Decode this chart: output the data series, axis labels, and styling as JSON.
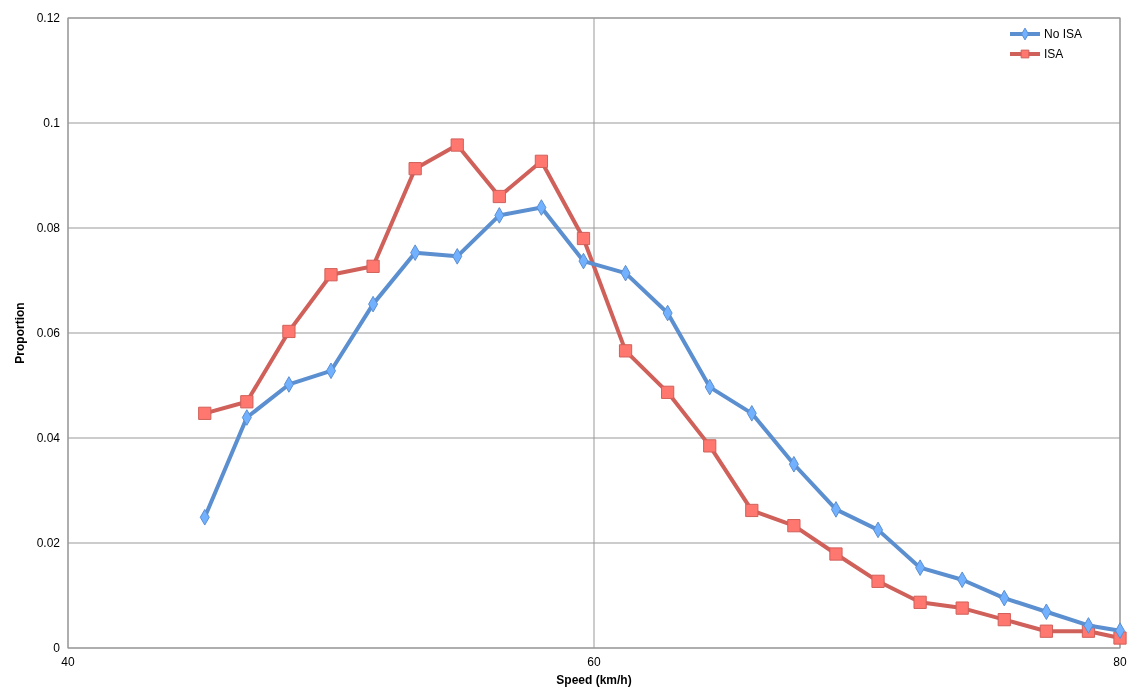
{
  "chart_data": {
    "type": "line",
    "xlabel": "Speed (km/h)",
    "ylabel": "Proportion",
    "x": [
      45.2,
      46.8,
      48.4,
      50,
      51.6,
      53.2,
      54.8,
      56.4,
      58,
      59.6,
      61.2,
      62.8,
      64.4,
      66,
      67.6,
      69.2,
      70.8,
      72.4,
      74,
      75.6,
      77.2,
      78.8,
      80
    ],
    "series": [
      {
        "name": "No ISA",
        "color": "#5b8fd0",
        "marker": "diamond",
        "values": [
          0.0249,
          0.0439,
          0.0502,
          0.0528,
          0.0655,
          0.0753,
          0.0746,
          0.0824,
          0.0839,
          0.0737,
          0.0714,
          0.0638,
          0.0497,
          0.0447,
          0.035,
          0.0264,
          0.0225,
          0.0153,
          0.013,
          0.0095,
          0.0069,
          0.0043,
          0.0033
        ]
      },
      {
        "name": "ISA",
        "color": "#d0605a",
        "marker": "square",
        "values": [
          0.0447,
          0.0469,
          0.0603,
          0.0711,
          0.0727,
          0.0913,
          0.0958,
          0.086,
          0.0927,
          0.078,
          0.0566,
          0.0487,
          0.0385,
          0.0262,
          0.0233,
          0.0179,
          0.0127,
          0.0087,
          0.0076,
          0.0054,
          0.0032,
          0.0032,
          0.0019
        ]
      }
    ],
    "xlim": [
      40,
      80
    ],
    "xticks": [
      40,
      60,
      80
    ],
    "ylim": [
      0,
      0.12
    ],
    "yticks": [
      0,
      0.02,
      0.04,
      0.06,
      0.08,
      0.1,
      0.12
    ],
    "grid": true,
    "legend": "top right",
    "line_style": "solid"
  }
}
